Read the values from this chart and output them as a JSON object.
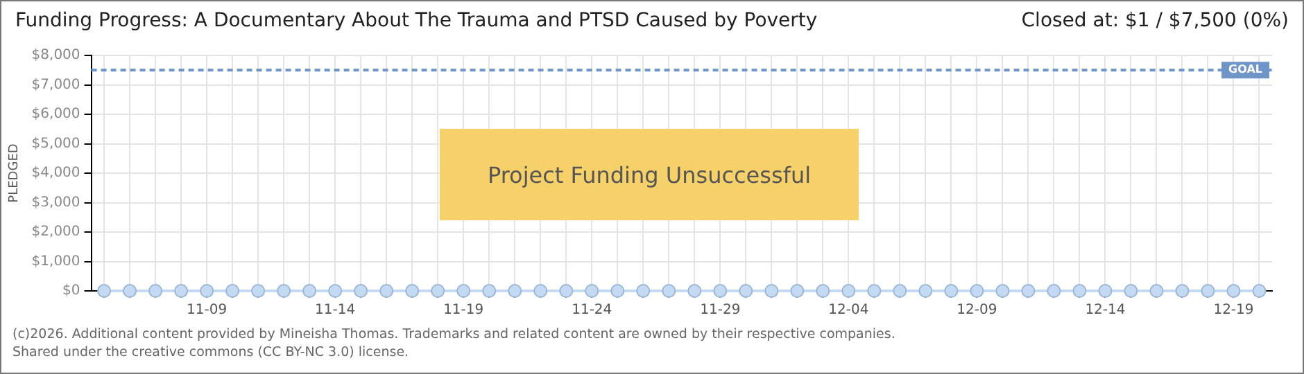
{
  "chart_data": {
    "type": "line",
    "title": "Funding Progress: A Documentary About The Trauma and PTSD Caused by Poverty",
    "subtitle": "Closed at:  $1 /  $7,500 (0%)",
    "ylabel": "PLEDGED",
    "categories": [
      null,
      null,
      null,
      null,
      "11-09",
      null,
      null,
      null,
      null,
      "11-14",
      null,
      null,
      null,
      null,
      "11-19",
      null,
      null,
      null,
      null,
      "11-24",
      null,
      null,
      null,
      null,
      "11-29",
      null,
      null,
      null,
      null,
      "12-04",
      null,
      null,
      null,
      null,
      "12-09",
      null,
      null,
      null,
      null,
      "12-14",
      null,
      null,
      null,
      null,
      "12-19",
      null
    ],
    "series": [
      {
        "color": "#c4daf2",
        "values": [
          0,
          0,
          0,
          0,
          0,
          0,
          0,
          0,
          0,
          0,
          0,
          0,
          0,
          0,
          0,
          0,
          0,
          0,
          0,
          0,
          0,
          0,
          0,
          0,
          0,
          0,
          0,
          0,
          0,
          0,
          0,
          0,
          0,
          0,
          0,
          0,
          0,
          0,
          0,
          0,
          0,
          0,
          0,
          0,
          0,
          0
        ]
      }
    ],
    "ylim": [
      0,
      8000
    ],
    "yticks": [
      {
        "value": 0,
        "label": "$0"
      },
      {
        "value": 1000,
        "label": "$1,000"
      },
      {
        "value": 2000,
        "label": "$2,000"
      },
      {
        "value": 3000,
        "label": "$3,000"
      },
      {
        "value": 4000,
        "label": "$4,000"
      },
      {
        "value": 5000,
        "label": "$5,000"
      },
      {
        "value": 6000,
        "label": "$6,000"
      },
      {
        "value": 7000,
        "label": "$7,000"
      },
      {
        "value": 8000,
        "label": "$8,000"
      }
    ],
    "ref_lines": [
      {
        "axis": "y",
        "value": 7500,
        "label": "GOAL",
        "color": "#6f94c8",
        "line_style": "dashed"
      }
    ],
    "annotations": [
      "Project Funding Unsuccessful",
      "(c)2026. Additional content provided by Mineisha Thomas. Trademarks and related content are owned by their respective companies.",
      "Shared under the creative commons (CC BY-NC 3.0) license."
    ],
    "grid": true,
    "marker": "circle",
    "line_style": "solid",
    "legend": false
  }
}
